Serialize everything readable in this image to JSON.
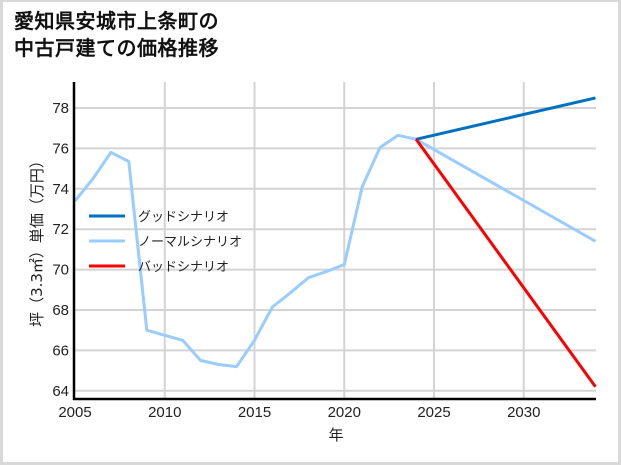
{
  "title_line1": "愛知県安城市上条町の",
  "title_line2": "中古戸建ての価格推移",
  "chart_data": {
    "type": "line",
    "title": "愛知県安城市上条町の中古戸建ての価格推移",
    "xlabel": "年",
    "ylabel": "坪（3.3㎡）単価（万円）",
    "xlim": [
      2005,
      2034
    ],
    "ylim": [
      63.5,
      79.2
    ],
    "x_ticks": [
      2005,
      2010,
      2015,
      2020,
      2025,
      2030
    ],
    "y_ticks": [
      64,
      66,
      68,
      70,
      72,
      74,
      76,
      78
    ],
    "grid": true,
    "legend_position": "center-left",
    "series": [
      {
        "name": "グッドシナリオ",
        "color": "#0070c0",
        "x": [
          2024,
          2034
        ],
        "values": [
          76.45,
          78.5
        ]
      },
      {
        "name": "ノーマルシナリオ",
        "color": "#99ccff",
        "x": [
          2005,
          2006,
          2007,
          2008,
          2009,
          2010,
          2011,
          2012,
          2013,
          2014,
          2015,
          2016,
          2017,
          2018,
          2019,
          2020,
          2021,
          2022,
          2023,
          2024,
          2034
        ],
        "values": [
          73.4,
          74.5,
          75.8,
          75.35,
          67.0,
          66.75,
          66.5,
          65.5,
          65.3,
          65.2,
          66.5,
          68.15,
          68.85,
          69.6,
          69.9,
          70.25,
          74.1,
          76.05,
          76.65,
          76.45,
          71.4
        ]
      },
      {
        "name": "バッドシナリオ",
        "color": "#ff0000",
        "x": [
          2024,
          2034
        ],
        "values": [
          76.45,
          64.2
        ]
      }
    ]
  }
}
